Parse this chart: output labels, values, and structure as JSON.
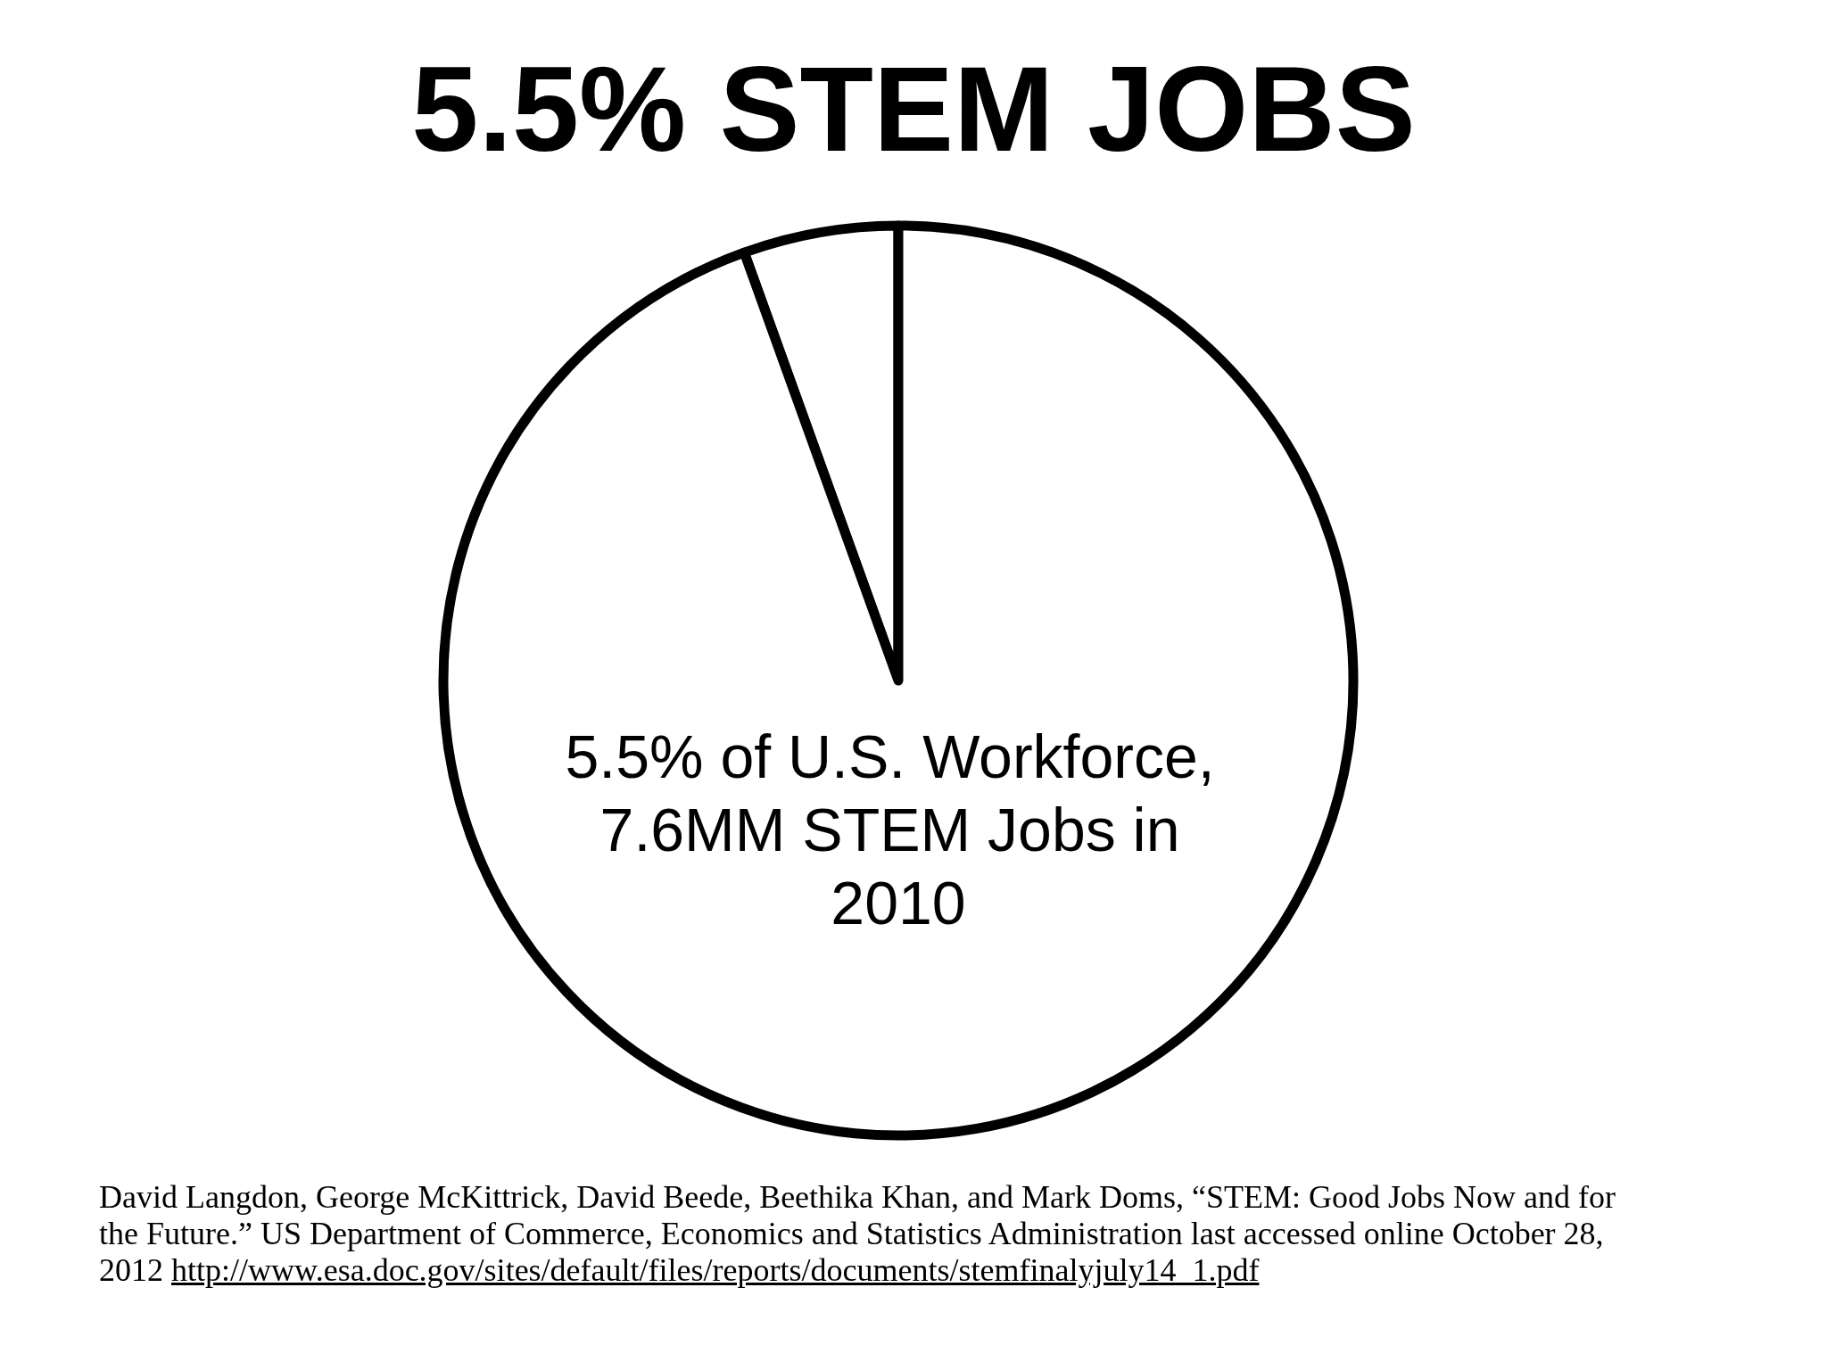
{
  "chart_data": {
    "type": "pie",
    "title": "5.5% STEM JOBS",
    "categories": [
      null,
      null
    ],
    "values": [
      5.5,
      94.5
    ],
    "colors": [
      "#ffffff",
      "#ffffff"
    ],
    "annotations": [
      "5.5% of U.S. Workforce, 7.6MM STEM Jobs in 2010",
      "David Langdon, George McKittrick, David Beede, Beethika Khan, and Mark Doms, “STEM: Good Jobs Now and for the Future.” US Department of Commerce, Economics and Statistics Administration last accessed online October 28, 2012 http://www.esa.doc.gov/sites/default/files/reports/documents/stemfinalyjuly14_1.pdf"
    ]
  }
}
